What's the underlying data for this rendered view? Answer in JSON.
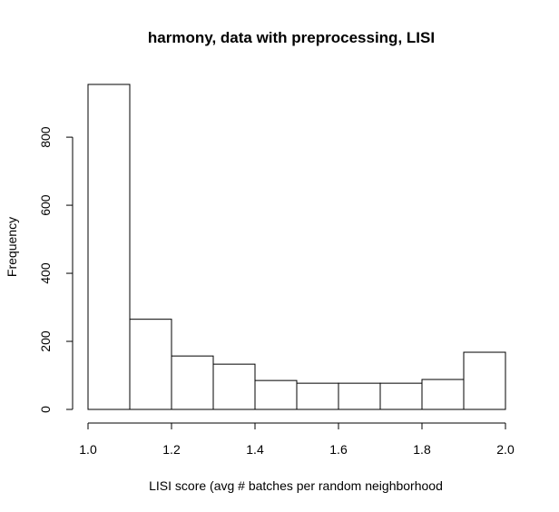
{
  "chart_data": {
    "type": "bar",
    "title": "harmony, data with preprocessing, LISI",
    "xlabel": "LISI score (avg # batches per random neighborhood",
    "ylabel": "Frequency",
    "bins": [
      {
        "from": 1.0,
        "to": 1.1,
        "count": 955
      },
      {
        "from": 1.1,
        "to": 1.2,
        "count": 265
      },
      {
        "from": 1.2,
        "to": 1.3,
        "count": 157
      },
      {
        "from": 1.3,
        "to": 1.4,
        "count": 133
      },
      {
        "from": 1.4,
        "to": 1.5,
        "count": 85
      },
      {
        "from": 1.5,
        "to": 1.6,
        "count": 77
      },
      {
        "from": 1.6,
        "to": 1.7,
        "count": 77
      },
      {
        "from": 1.7,
        "to": 1.8,
        "count": 77
      },
      {
        "from": 1.8,
        "to": 1.9,
        "count": 88
      },
      {
        "from": 1.9,
        "to": 2.0,
        "count": 168
      }
    ],
    "xlim": [
      1.0,
      2.0
    ],
    "ylim": [
      0,
      955
    ],
    "xticks": [
      1.0,
      1.2,
      1.4,
      1.6,
      1.8,
      2.0
    ],
    "xtick_labels": [
      "1.0",
      "1.2",
      "1.4",
      "1.6",
      "1.8",
      "2.0"
    ],
    "yticks": [
      0,
      200,
      400,
      600,
      800
    ],
    "ytick_labels": [
      "0",
      "200",
      "400",
      "600",
      "800"
    ],
    "grid": false,
    "legend": "none",
    "bar_fill": "#ffffff",
    "bar_stroke": "#000000"
  }
}
